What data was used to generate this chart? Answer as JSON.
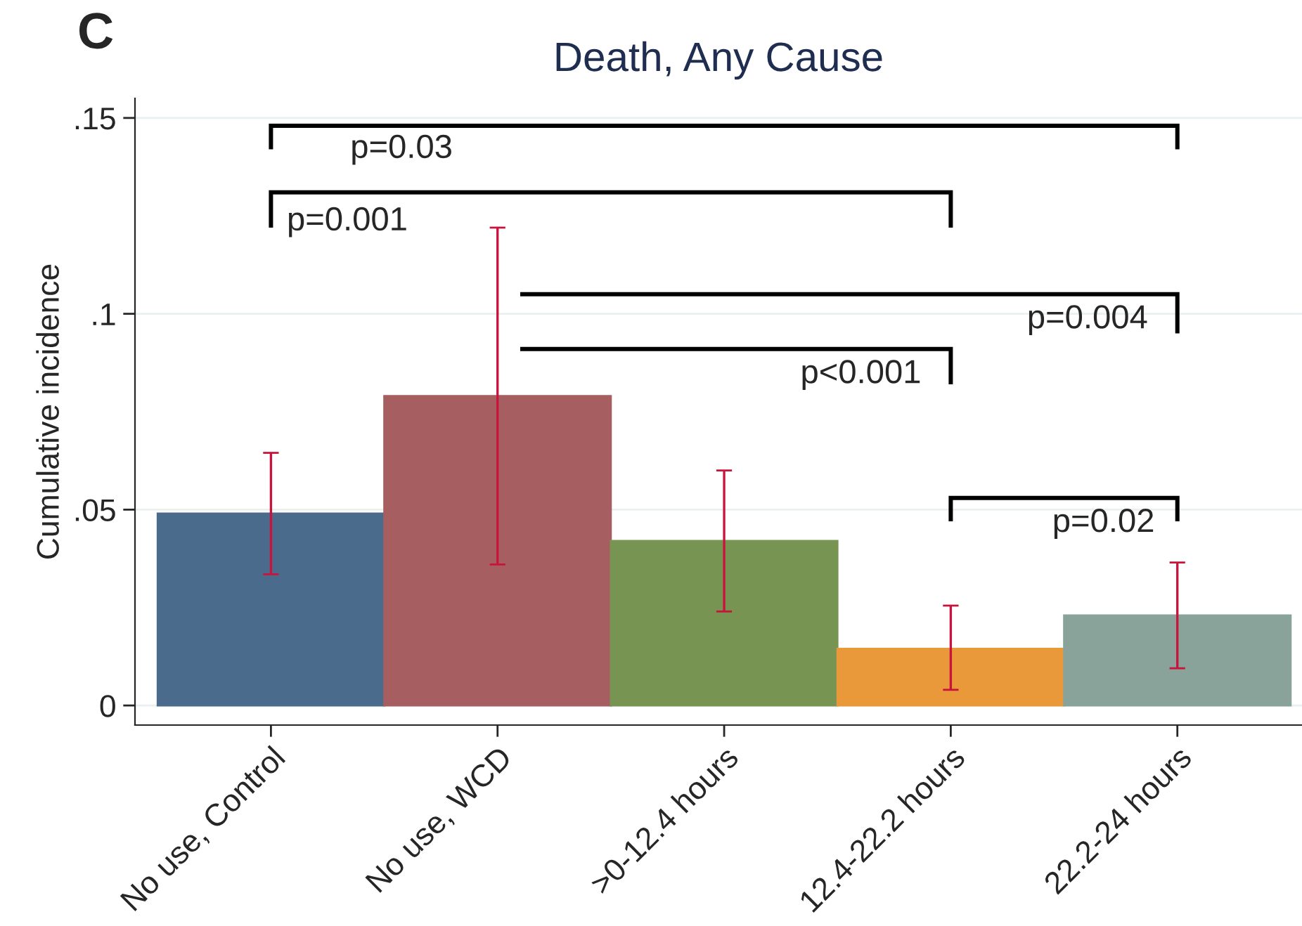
{
  "chart_data": {
    "type": "bar",
    "title": "Death, Any Cause",
    "ylabel": "Cumulative incidence",
    "categories": [
      "No use, Control",
      "No use, WCD",
      ">0-12.4 hours",
      "12.4-22.2 hours",
      "22.2-24 hours"
    ],
    "values": [
      0.049,
      0.079,
      0.042,
      0.0145,
      0.023
    ],
    "colors": [
      "#4a6b8c",
      "#a65e60",
      "#789452",
      "#e9993a",
      "#8aa39a"
    ],
    "errors": [
      [
        0.0335,
        0.0645
      ],
      [
        0.036,
        0.122
      ],
      [
        0.024,
        0.06
      ],
      [
        0.004,
        0.0255
      ],
      [
        0.0095,
        0.0365
      ]
    ],
    "ylim": [
      -0.005,
      0.155
    ],
    "yticks": [
      {
        "value": 0,
        "label": "0"
      },
      {
        "value": 0.05,
        "label": ".05"
      },
      {
        "value": 0.1,
        "label": ".1"
      },
      {
        "value": 0.15,
        "label": ".15"
      }
    ],
    "grid": "y",
    "annotations": [
      "C",
      "p=0.03",
      "p=0.001",
      "p=0.004",
      "p<0.001",
      "p=0.02"
    ]
  }
}
